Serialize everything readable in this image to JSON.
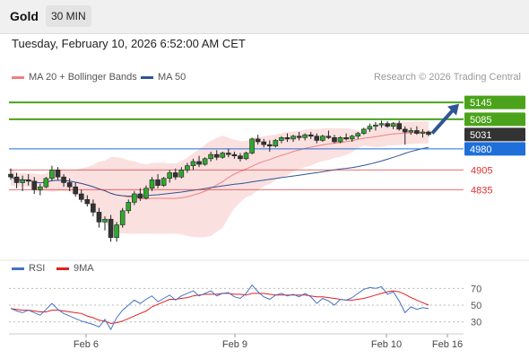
{
  "header": {
    "instrument": "Gold",
    "timeframe": "30 MIN"
  },
  "datetime": "Tuesday, February 10, 2026 6:52:00 AM CET",
  "legend": {
    "ma20": {
      "label": "MA 20 + Bollinger Bands",
      "color": "#f08080"
    },
    "ma50": {
      "label": "MA 50",
      "color": "#2f5597"
    },
    "credit": "Research © 2026 Trading Central"
  },
  "rsi_legend": {
    "rsi": {
      "label": "RSI",
      "color": "#4472c4"
    },
    "ma9": {
      "label": "9MA",
      "color": "#e02020"
    }
  },
  "levels": [
    {
      "id": "r2",
      "label": "5145",
      "value": 5145,
      "color": "#4aa31a",
      "style": "badge"
    },
    {
      "id": "r1",
      "label": "5085",
      "value": 5085,
      "color": "#4aa31a",
      "style": "badge"
    },
    {
      "id": "last",
      "label": "5031",
      "value": 5031,
      "color": "#333333",
      "style": "badge-dark"
    },
    {
      "id": "pivot",
      "label": "4980",
      "value": 4980,
      "color": "#1e6fd9",
      "style": "badge"
    },
    {
      "id": "s1",
      "label": "4905",
      "value": 4905,
      "color": "#e03030",
      "style": "text"
    },
    {
      "id": "s2",
      "label": "4835",
      "value": 4835,
      "color": "#e03030",
      "style": "text"
    }
  ],
  "rsi_ticks": [
    "70",
    "50",
    "30"
  ],
  "x_ticks": [
    "Feb 6",
    "Feb 9",
    "Feb 10",
    "Feb 16"
  ],
  "chart_data": {
    "type": "candlestick",
    "price_range": [
      4600,
      5190
    ],
    "rsi_range": [
      20,
      80
    ],
    "candles": [
      [
        4890,
        4910,
        4870,
        4880
      ],
      [
        4880,
        4895,
        4840,
        4860
      ],
      [
        4860,
        4885,
        4830,
        4870
      ],
      [
        4870,
        4890,
        4850,
        4865
      ],
      [
        4865,
        4880,
        4820,
        4835
      ],
      [
        4835,
        4855,
        4815,
        4845
      ],
      [
        4845,
        4880,
        4840,
        4875
      ],
      [
        4875,
        4920,
        4865,
        4905
      ],
      [
        4905,
        4915,
        4870,
        4880
      ],
      [
        4880,
        4890,
        4845,
        4860
      ],
      [
        4860,
        4875,
        4830,
        4845
      ],
      [
        4845,
        4860,
        4810,
        4820
      ],
      [
        4820,
        4835,
        4790,
        4800
      ],
      [
        4800,
        4815,
        4775,
        4785
      ],
      [
        4785,
        4800,
        4740,
        4755
      ],
      [
        4755,
        4770,
        4700,
        4720
      ],
      [
        4720,
        4740,
        4690,
        4730
      ],
      [
        4730,
        4745,
        4650,
        4665
      ],
      [
        4665,
        4720,
        4650,
        4710
      ],
      [
        4710,
        4770,
        4700,
        4760
      ],
      [
        4760,
        4800,
        4750,
        4790
      ],
      [
        4790,
        4830,
        4780,
        4820
      ],
      [
        4820,
        4840,
        4795,
        4805
      ],
      [
        4805,
        4850,
        4800,
        4840
      ],
      [
        4840,
        4880,
        4830,
        4870
      ],
      [
        4870,
        4890,
        4840,
        4850
      ],
      [
        4850,
        4880,
        4845,
        4875
      ],
      [
        4875,
        4905,
        4860,
        4895
      ],
      [
        4895,
        4910,
        4870,
        4880
      ],
      [
        4880,
        4915,
        4875,
        4905
      ],
      [
        4905,
        4930,
        4895,
        4920
      ],
      [
        4920,
        4945,
        4905,
        4935
      ],
      [
        4935,
        4955,
        4915,
        4925
      ],
      [
        4925,
        4950,
        4920,
        4945
      ],
      [
        4945,
        4970,
        4935,
        4960
      ],
      [
        4960,
        4975,
        4940,
        4950
      ],
      [
        4950,
        4970,
        4945,
        4965
      ],
      [
        4965,
        4980,
        4950,
        4960
      ],
      [
        4960,
        4970,
        4945,
        4955
      ],
      [
        4955,
        4965,
        4935,
        4945
      ],
      [
        4945,
        4970,
        4940,
        4965
      ],
      [
        4965,
        5020,
        4960,
        5015
      ],
      [
        5015,
        5030,
        4995,
        5005
      ],
      [
        5005,
        5015,
        4985,
        4995
      ],
      [
        4995,
        5010,
        4970,
        4990
      ],
      [
        4990,
        5015,
        4985,
        5010
      ],
      [
        5010,
        5025,
        5000,
        5020
      ],
      [
        5020,
        5035,
        5005,
        5015
      ],
      [
        5015,
        5030,
        5005,
        5025
      ],
      [
        5025,
        5040,
        5010,
        5020
      ],
      [
        5020,
        5035,
        5010,
        5030
      ],
      [
        5030,
        5040,
        5015,
        5025
      ],
      [
        5025,
        5035,
        5000,
        5010
      ],
      [
        5010,
        5030,
        5005,
        5025
      ],
      [
        5025,
        5045,
        5015,
        5020
      ],
      [
        5020,
        5030,
        5000,
        5005
      ],
      [
        5005,
        5025,
        5000,
        5020
      ],
      [
        5020,
        5035,
        5010,
        5015
      ],
      [
        5015,
        5030,
        5005,
        5025
      ],
      [
        5025,
        5040,
        5015,
        5035
      ],
      [
        5035,
        5055,
        5030,
        5050
      ],
      [
        5050,
        5070,
        5040,
        5060
      ],
      [
        5060,
        5075,
        5045,
        5065
      ],
      [
        5065,
        5080,
        5055,
        5070
      ],
      [
        5070,
        5078,
        5055,
        5060
      ],
      [
        5060,
        5075,
        5050,
        5070
      ],
      [
        5070,
        5080,
        5045,
        5050
      ],
      [
        5050,
        5060,
        4995,
        5040
      ],
      [
        5040,
        5055,
        5030,
        5045
      ],
      [
        5045,
        5060,
        5030,
        5035
      ],
      [
        5035,
        5050,
        5020,
        5040
      ],
      [
        5040,
        5045,
        5025,
        5031
      ]
    ],
    "rsi": [
      46,
      43,
      41,
      44,
      41,
      38,
      45,
      52,
      45,
      40,
      37,
      34,
      31,
      29,
      27,
      24,
      33,
      21,
      35,
      44,
      50,
      56,
      52,
      57,
      61,
      54,
      58,
      62,
      56,
      61,
      64,
      67,
      61,
      64,
      67,
      61,
      64,
      65,
      60,
      58,
      64,
      74,
      66,
      60,
      57,
      62,
      64,
      61,
      63,
      60,
      64,
      60,
      52,
      58,
      55,
      50,
      57,
      56,
      59,
      64,
      69,
      71,
      70,
      72,
      63,
      66,
      55,
      41,
      48,
      45,
      47,
      46
    ],
    "ma9": [
      46,
      45,
      44,
      44,
      43,
      42,
      42,
      44,
      44,
      43,
      42,
      41,
      40,
      37,
      35,
      32,
      31,
      28,
      29,
      31,
      34,
      37,
      40,
      43,
      48,
      51,
      54,
      57,
      57,
      58,
      59,
      61,
      62,
      63,
      63,
      63,
      64,
      64,
      63,
      63,
      62,
      64,
      64,
      64,
      63,
      62,
      62,
      62,
      62,
      62,
      62,
      61,
      60,
      60,
      59,
      58,
      57,
      56,
      56,
      57,
      58,
      60,
      62,
      64,
      66,
      67,
      66,
      63,
      59,
      56,
      53,
      50
    ]
  }
}
